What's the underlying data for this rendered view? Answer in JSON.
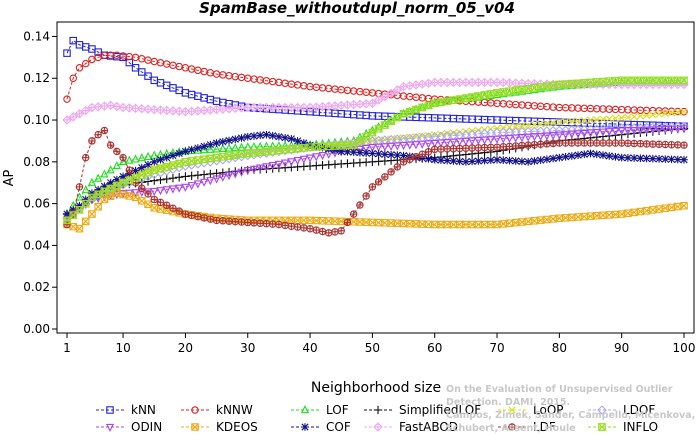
{
  "chart_data": {
    "type": "line",
    "title": "SpamBase_withoutdupl_norm_05_v04",
    "xlabel": "Neighborhood size",
    "ylabel": "AP",
    "xlim": [
      1,
      100
    ],
    "ylim": [
      0,
      0.145
    ],
    "x_ticks": [
      1,
      10,
      20,
      30,
      40,
      50,
      60,
      70,
      80,
      90,
      100
    ],
    "x_tick_labels": [
      "1",
      "10",
      "20",
      "30",
      "40",
      "50",
      "60",
      "70",
      "80",
      "90",
      "100"
    ],
    "y_ticks": [
      0,
      0.02,
      0.04,
      0.06,
      0.08,
      0.1,
      0.12,
      0.14
    ],
    "y_tick_labels": [
      "0.00",
      "0.02",
      "0.04",
      "0.06",
      "0.08",
      "0.10",
      "0.12",
      "0.14"
    ],
    "grid": false,
    "legend_position": "bottom",
    "credit_lines": [
      "Campos, Zimek, Sander, Campello, Micenkova, Schubert, Assent, Houle",
      "On the Evaluation of Unsupervised Outlier Detection. DAMI, 2015."
    ],
    "series": [
      {
        "name": "kNN",
        "color": "#2222dd",
        "marker": "square",
        "points": [
          [
            1,
            0.132
          ],
          [
            2,
            0.138
          ],
          [
            3,
            0.136
          ],
          [
            5,
            0.134
          ],
          [
            7,
            0.131
          ],
          [
            10,
            0.13
          ],
          [
            12,
            0.125
          ],
          [
            15,
            0.119
          ],
          [
            20,
            0.113
          ],
          [
            25,
            0.109
          ],
          [
            30,
            0.106
          ],
          [
            35,
            0.105
          ],
          [
            40,
            0.104
          ],
          [
            50,
            0.102
          ],
          [
            60,
            0.101
          ],
          [
            70,
            0.1
          ],
          [
            80,
            0.099
          ],
          [
            90,
            0.098
          ],
          [
            100,
            0.097
          ]
        ]
      },
      {
        "name": "kNNW",
        "color": "#dd2222",
        "marker": "circle",
        "points": [
          [
            1,
            0.11
          ],
          [
            2,
            0.12
          ],
          [
            3,
            0.125
          ],
          [
            5,
            0.129
          ],
          [
            7,
            0.131
          ],
          [
            9,
            0.131
          ],
          [
            12,
            0.13
          ],
          [
            15,
            0.128
          ],
          [
            20,
            0.125
          ],
          [
            25,
            0.122
          ],
          [
            30,
            0.12
          ],
          [
            40,
            0.116
          ],
          [
            50,
            0.113
          ],
          [
            60,
            0.11
          ],
          [
            70,
            0.108
          ],
          [
            80,
            0.106
          ],
          [
            90,
            0.105
          ],
          [
            100,
            0.104
          ]
        ]
      },
      {
        "name": "LOF",
        "color": "#22dd22",
        "marker": "triangle",
        "points": [
          [
            1,
            0.055
          ],
          [
            3,
            0.063
          ],
          [
            5,
            0.07
          ],
          [
            8,
            0.076
          ],
          [
            10,
            0.08
          ],
          [
            15,
            0.083
          ],
          [
            20,
            0.085
          ],
          [
            30,
            0.087
          ],
          [
            40,
            0.088
          ],
          [
            47,
            0.09
          ],
          [
            50,
            0.095
          ],
          [
            55,
            0.103
          ],
          [
            60,
            0.108
          ],
          [
            70,
            0.112
          ],
          [
            80,
            0.116
          ],
          [
            90,
            0.118
          ],
          [
            100,
            0.118
          ]
        ]
      },
      {
        "name": "SimplifiedLOF",
        "color": "#111111",
        "marker": "plus",
        "points": [
          [
            1,
            0.055
          ],
          [
            3,
            0.058
          ],
          [
            5,
            0.062
          ],
          [
            8,
            0.067
          ],
          [
            10,
            0.069
          ],
          [
            15,
            0.071
          ],
          [
            20,
            0.073
          ],
          [
            30,
            0.076
          ],
          [
            40,
            0.078
          ],
          [
            50,
            0.08
          ],
          [
            60,
            0.082
          ],
          [
            70,
            0.085
          ],
          [
            80,
            0.09
          ],
          [
            90,
            0.093
          ],
          [
            100,
            0.096
          ]
        ]
      },
      {
        "name": "LoOP",
        "color": "#dddd22",
        "marker": "x",
        "points": [
          [
            1,
            0.052
          ],
          [
            3,
            0.058
          ],
          [
            5,
            0.064
          ],
          [
            10,
            0.072
          ],
          [
            15,
            0.077
          ],
          [
            20,
            0.08
          ],
          [
            30,
            0.084
          ],
          [
            40,
            0.087
          ],
          [
            50,
            0.09
          ],
          [
            60,
            0.093
          ],
          [
            70,
            0.096
          ],
          [
            80,
            0.099
          ],
          [
            90,
            0.101
          ],
          [
            100,
            0.104
          ]
        ]
      },
      {
        "name": "LDOF",
        "color": "#aaaaee",
        "marker": "diamond",
        "points": [
          [
            1,
            0.053
          ],
          [
            5,
            0.062
          ],
          [
            10,
            0.069
          ],
          [
            15,
            0.074
          ],
          [
            20,
            0.078
          ],
          [
            30,
            0.083
          ],
          [
            40,
            0.087
          ],
          [
            50,
            0.09
          ],
          [
            60,
            0.092
          ],
          [
            70,
            0.094
          ],
          [
            80,
            0.095
          ],
          [
            90,
            0.096
          ],
          [
            100,
            0.097
          ]
        ]
      },
      {
        "name": "ODIN",
        "color": "#aa44ee",
        "marker": "triangle-down",
        "points": [
          [
            1,
            0.054
          ],
          [
            3,
            0.058
          ],
          [
            5,
            0.062
          ],
          [
            8,
            0.064
          ],
          [
            10,
            0.065
          ],
          [
            15,
            0.066
          ],
          [
            20,
            0.068
          ],
          [
            25,
            0.072
          ],
          [
            30,
            0.076
          ],
          [
            35,
            0.079
          ],
          [
            40,
            0.082
          ],
          [
            45,
            0.085
          ],
          [
            50,
            0.087
          ],
          [
            60,
            0.089
          ],
          [
            70,
            0.091
          ],
          [
            80,
            0.093
          ],
          [
            90,
            0.095
          ],
          [
            100,
            0.096
          ]
        ]
      },
      {
        "name": "KDEOS",
        "color": "#eeaa11",
        "marker": "square-x",
        "points": [
          [
            1,
            0.05
          ],
          [
            3,
            0.048
          ],
          [
            5,
            0.055
          ],
          [
            7,
            0.062
          ],
          [
            9,
            0.065
          ],
          [
            12,
            0.063
          ],
          [
            15,
            0.058
          ],
          [
            20,
            0.055
          ],
          [
            25,
            0.053
          ],
          [
            30,
            0.052
          ],
          [
            40,
            0.052
          ],
          [
            50,
            0.051
          ],
          [
            60,
            0.05
          ],
          [
            70,
            0.05
          ],
          [
            80,
            0.053
          ],
          [
            90,
            0.055
          ],
          [
            100,
            0.059
          ]
        ]
      },
      {
        "name": "COF",
        "color": "#111188",
        "marker": "asterisk",
        "points": [
          [
            1,
            0.055
          ],
          [
            3,
            0.059
          ],
          [
            5,
            0.065
          ],
          [
            8,
            0.07
          ],
          [
            10,
            0.073
          ],
          [
            15,
            0.08
          ],
          [
            20,
            0.085
          ],
          [
            25,
            0.089
          ],
          [
            30,
            0.092
          ],
          [
            33,
            0.093
          ],
          [
            37,
            0.091
          ],
          [
            40,
            0.088
          ],
          [
            45,
            0.085
          ],
          [
            50,
            0.084
          ],
          [
            55,
            0.083
          ],
          [
            60,
            0.081
          ],
          [
            65,
            0.08
          ],
          [
            70,
            0.081
          ],
          [
            75,
            0.08
          ],
          [
            80,
            0.082
          ],
          [
            85,
            0.084
          ],
          [
            90,
            0.082
          ],
          [
            100,
            0.081
          ]
        ]
      },
      {
        "name": "FastABOD",
        "color": "#eeaaee",
        "marker": "diamond-plus",
        "points": [
          [
            1,
            0.1
          ],
          [
            3,
            0.103
          ],
          [
            5,
            0.106
          ],
          [
            8,
            0.107
          ],
          [
            10,
            0.106
          ],
          [
            15,
            0.105
          ],
          [
            20,
            0.104
          ],
          [
            25,
            0.105
          ],
          [
            30,
            0.106
          ],
          [
            35,
            0.106
          ],
          [
            40,
            0.106
          ],
          [
            45,
            0.107
          ],
          [
            50,
            0.108
          ],
          [
            55,
            0.116
          ],
          [
            60,
            0.118
          ],
          [
            70,
            0.118
          ],
          [
            80,
            0.117
          ],
          [
            90,
            0.117
          ],
          [
            100,
            0.117
          ]
        ]
      },
      {
        "name": "LDF",
        "color": "#aa3333",
        "marker": "circle-plus",
        "points": [
          [
            1,
            0.05
          ],
          [
            2,
            0.055
          ],
          [
            3,
            0.068
          ],
          [
            4,
            0.082
          ],
          [
            5,
            0.09
          ],
          [
            6,
            0.093
          ],
          [
            7,
            0.095
          ],
          [
            8,
            0.088
          ],
          [
            10,
            0.082
          ],
          [
            12,
            0.07
          ],
          [
            15,
            0.062
          ],
          [
            20,
            0.055
          ],
          [
            25,
            0.052
          ],
          [
            30,
            0.051
          ],
          [
            35,
            0.05
          ],
          [
            40,
            0.048
          ],
          [
            43,
            0.046
          ],
          [
            45,
            0.047
          ],
          [
            47,
            0.055
          ],
          [
            50,
            0.068
          ],
          [
            55,
            0.08
          ],
          [
            60,
            0.086
          ],
          [
            70,
            0.087
          ],
          [
            80,
            0.089
          ],
          [
            90,
            0.089
          ],
          [
            100,
            0.088
          ]
        ]
      },
      {
        "name": "INFLO",
        "color": "#99dd22",
        "marker": "hourglass",
        "points": [
          [
            1,
            0.052
          ],
          [
            3,
            0.057
          ],
          [
            5,
            0.063
          ],
          [
            10,
            0.07
          ],
          [
            15,
            0.076
          ],
          [
            20,
            0.08
          ],
          [
            30,
            0.084
          ],
          [
            40,
            0.087
          ],
          [
            47,
            0.088
          ],
          [
            50,
            0.094
          ],
          [
            55,
            0.103
          ],
          [
            60,
            0.108
          ],
          [
            70,
            0.113
          ],
          [
            80,
            0.117
          ],
          [
            90,
            0.119
          ],
          [
            100,
            0.119
          ]
        ]
      }
    ]
  }
}
